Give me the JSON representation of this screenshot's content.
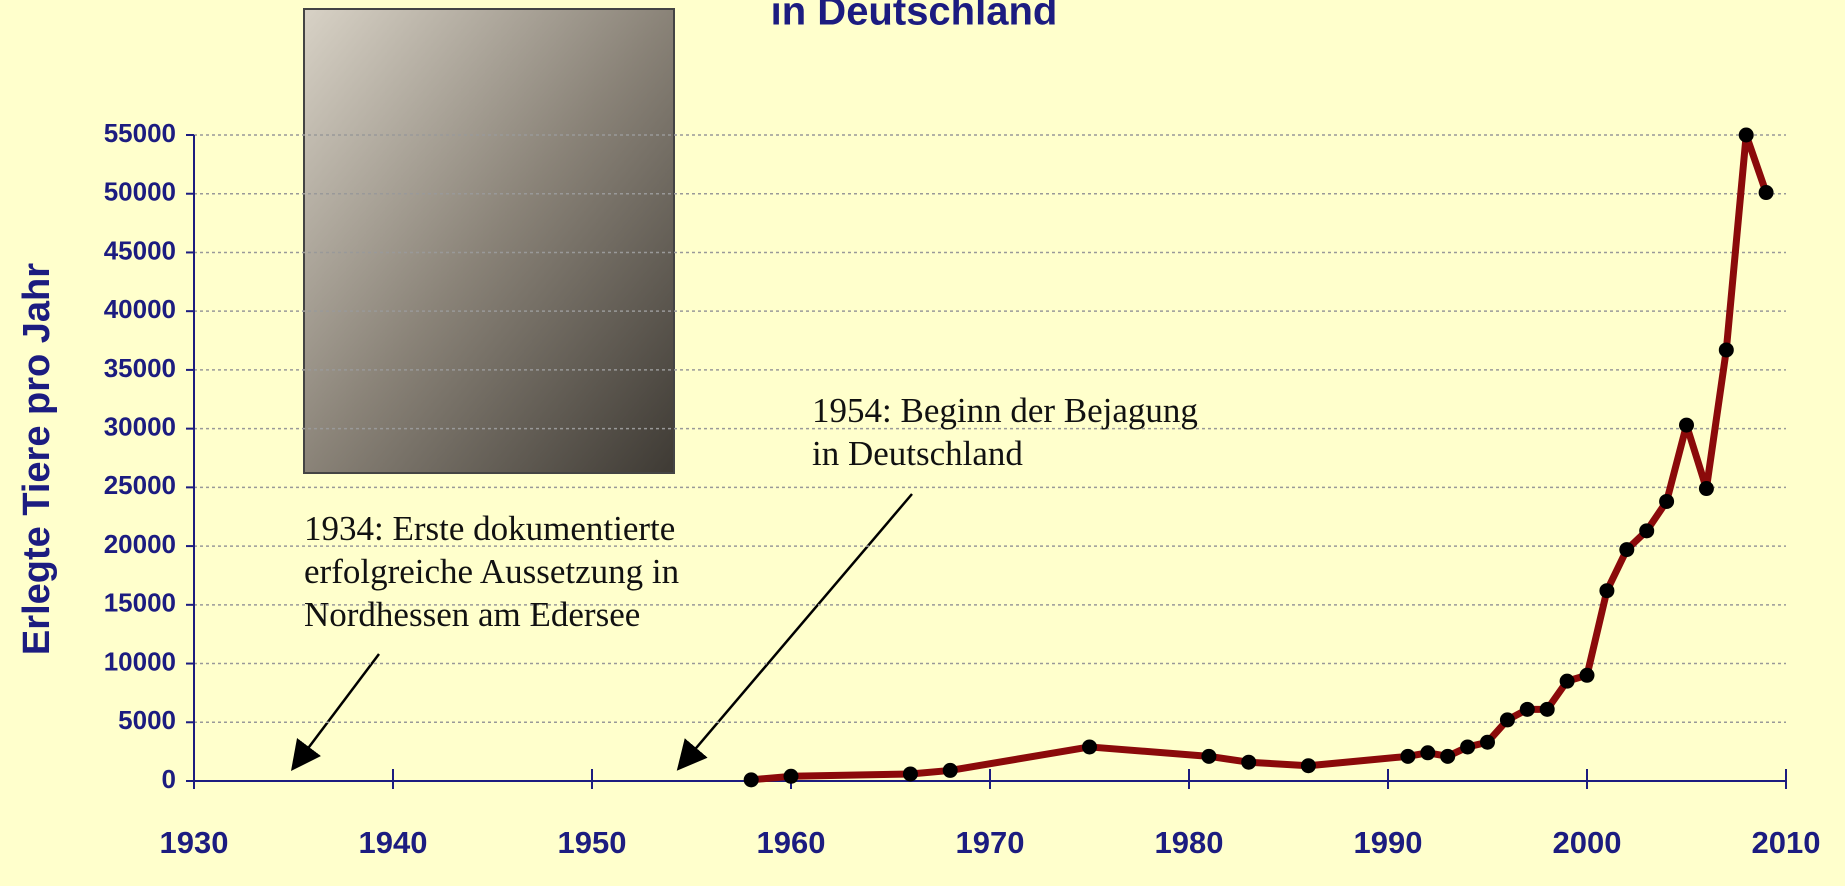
{
  "chart_data": {
    "type": "line",
    "title": "in Deutschland",
    "ylabel": "Erlegte Tiere pro Jahr",
    "annotations": [
      {
        "lines": [
          "1934: Erste dokumentierte",
          "erfolgreiche Aussetzung in",
          "Nordhessen am Edersee"
        ]
      },
      {
        "lines": [
          "1954: Beginn der Bejagung",
          "in Deutschland"
        ]
      }
    ],
    "x": [
      1958,
      1960,
      1966,
      1968,
      1975,
      1981,
      1983,
      1986,
      1991,
      1992,
      1993,
      1994,
      1995,
      1996,
      1997,
      1998,
      1999,
      2000,
      2001,
      2002,
      2003,
      2004,
      2005,
      2006,
      2007,
      2008,
      2009
    ],
    "values": [
      100,
      400,
      600,
      900,
      2900,
      2100,
      1600,
      1300,
      2100,
      2400,
      2100,
      2900,
      3300,
      5200,
      6100,
      6100,
      8500,
      9000,
      16200,
      19700,
      21300,
      23800,
      30300,
      24900,
      36700,
      55000,
      50100
    ],
    "color": "#8b0a0a",
    "marker_color": "#000000",
    "xlim": [
      1930,
      2010
    ],
    "xticks": [
      1930,
      1940,
      1950,
      1960,
      1970,
      1980,
      1990,
      2000,
      2010
    ],
    "ylim": [
      0,
      55000
    ],
    "yticks": [
      0,
      5000,
      10000,
      15000,
      20000,
      25000,
      30000,
      35000,
      40000,
      45000,
      50000,
      55000
    ],
    "grid": true
  }
}
